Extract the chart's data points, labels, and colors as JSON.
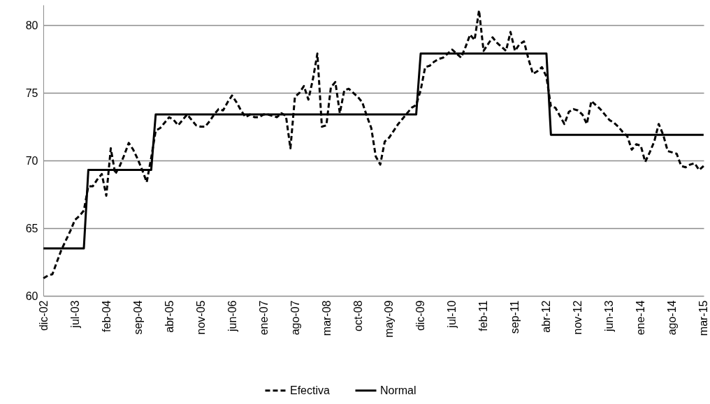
{
  "chart_data": {
    "type": "line",
    "categories": [
      "dic-02",
      null,
      null,
      null,
      null,
      null,
      null,
      "jul-03",
      null,
      null,
      null,
      null,
      null,
      null,
      "feb-04",
      null,
      null,
      null,
      null,
      null,
      null,
      "sep-04",
      null,
      null,
      null,
      null,
      null,
      null,
      "abr-05",
      null,
      null,
      null,
      null,
      null,
      null,
      "nov-05",
      null,
      null,
      null,
      null,
      null,
      null,
      "jun-06",
      null,
      null,
      null,
      null,
      null,
      null,
      "ene-07",
      null,
      null,
      null,
      null,
      null,
      null,
      "ago-07",
      null,
      null,
      null,
      null,
      null,
      null,
      "mar-08",
      null,
      null,
      null,
      null,
      null,
      null,
      "oct-08",
      null,
      null,
      null,
      null,
      null,
      null,
      "may-09",
      null,
      null,
      null,
      null,
      null,
      null,
      "dic-09",
      null,
      null,
      null,
      null,
      null,
      null,
      "jul-10",
      null,
      null,
      null,
      null,
      null,
      null,
      "feb-11",
      null,
      null,
      null,
      null,
      null,
      null,
      "sep-11",
      null,
      null,
      null,
      null,
      null,
      null,
      "abr-12",
      null,
      null,
      null,
      null,
      null,
      null,
      "nov-12",
      null,
      null,
      null,
      null,
      null,
      null,
      "jun-13",
      null,
      null,
      null,
      null,
      null,
      null,
      "ene-14",
      null,
      null,
      null,
      null,
      null,
      null,
      "ago-14",
      null,
      null,
      null,
      null,
      null,
      null,
      "mar-15"
    ],
    "series": [
      {
        "name": "Efectiva",
        "color": "#000000",
        "line_style": "dashed",
        "values": [
          61.3,
          61.5,
          61.6,
          62.5,
          63.4,
          64.1,
          64.8,
          65.6,
          65.9,
          66.3,
          68.1,
          68.1,
          68.6,
          69.0,
          67.4,
          70.9,
          69.0,
          69.6,
          70.4,
          71.3,
          70.8,
          70.1,
          69.3,
          68.4,
          70.2,
          72.2,
          72.4,
          72.8,
          73.2,
          73.0,
          72.6,
          73.0,
          73.4,
          73.0,
          72.6,
          72.5,
          72.5,
          72.9,
          73.4,
          73.8,
          73.7,
          74.3,
          74.8,
          74.3,
          73.7,
          73.2,
          73.4,
          73.2,
          73.2,
          73.4,
          73.4,
          73.3,
          73.2,
          73.5,
          73.3,
          70.9,
          74.7,
          75.0,
          75.5,
          74.5,
          76.0,
          77.9,
          72.5,
          72.6,
          75.4,
          75.8,
          73.5,
          75.2,
          75.3,
          75.0,
          74.7,
          74.3,
          73.3,
          72.4,
          70.3,
          69.7,
          71.4,
          71.7,
          72.2,
          72.7,
          73.1,
          73.5,
          73.9,
          74.1,
          75.2,
          76.9,
          77.0,
          77.3,
          77.5,
          77.6,
          77.9,
          78.2,
          77.9,
          77.6,
          78.4,
          79.3,
          78.9,
          81.1,
          78.1,
          78.6,
          79.1,
          78.7,
          78.4,
          78.1,
          79.5,
          78.1,
          78.6,
          78.8,
          77.5,
          76.4,
          76.6,
          76.9,
          76.2,
          74.0,
          73.9,
          73.3,
          72.7,
          73.6,
          73.8,
          73.7,
          73.4,
          72.7,
          74.4,
          74.1,
          73.8,
          73.4,
          73.0,
          72.8,
          72.5,
          72.1,
          71.8,
          70.8,
          71.2,
          71.1,
          69.9,
          70.6,
          71.4,
          72.7,
          71.9,
          70.7,
          70.6,
          70.5,
          69.6,
          69.5,
          69.7,
          69.8,
          69.3,
          69.6
        ]
      },
      {
        "name": "Normal",
        "color": "#000000",
        "line_style": "solid",
        "values": [
          63.5,
          63.5,
          63.5,
          63.5,
          63.5,
          63.5,
          63.5,
          63.5,
          63.5,
          63.5,
          69.3,
          69.3,
          69.3,
          69.3,
          69.3,
          69.3,
          69.3,
          69.3,
          69.3,
          69.3,
          69.3,
          69.3,
          69.3,
          69.3,
          69.3,
          73.4,
          73.4,
          73.4,
          73.4,
          73.4,
          73.4,
          73.4,
          73.4,
          73.4,
          73.4,
          73.4,
          73.4,
          73.4,
          73.4,
          73.4,
          73.4,
          73.4,
          73.4,
          73.4,
          73.4,
          73.4,
          73.4,
          73.4,
          73.4,
          73.4,
          73.4,
          73.4,
          73.4,
          73.4,
          73.4,
          73.4,
          73.4,
          73.4,
          73.4,
          73.4,
          73.4,
          73.4,
          73.4,
          73.4,
          73.4,
          73.4,
          73.4,
          73.4,
          73.4,
          73.4,
          73.4,
          73.4,
          73.4,
          73.4,
          73.4,
          73.4,
          73.4,
          73.4,
          73.4,
          73.4,
          73.4,
          73.4,
          73.4,
          73.4,
          77.9,
          77.9,
          77.9,
          77.9,
          77.9,
          77.9,
          77.9,
          77.9,
          77.9,
          77.9,
          77.9,
          77.9,
          77.9,
          77.9,
          77.9,
          77.9,
          77.9,
          77.9,
          77.9,
          77.9,
          77.9,
          77.9,
          77.9,
          77.9,
          77.9,
          77.9,
          77.9,
          77.9,
          77.9,
          71.9,
          71.9,
          71.9,
          71.9,
          71.9,
          71.9,
          71.9,
          71.9,
          71.9,
          71.9,
          71.9,
          71.9,
          71.9,
          71.9,
          71.9,
          71.9,
          71.9,
          71.9,
          71.9,
          71.9,
          71.9,
          71.9,
          71.9,
          71.9,
          71.9,
          71.9,
          71.9,
          71.9,
          71.9,
          71.9,
          71.9,
          71.9,
          71.9,
          71.9,
          71.9
        ]
      }
    ],
    "ylim": [
      60,
      81.5
    ],
    "yticks": [
      60,
      65,
      70,
      75,
      80
    ],
    "grid": "y",
    "legend": "bottom"
  }
}
